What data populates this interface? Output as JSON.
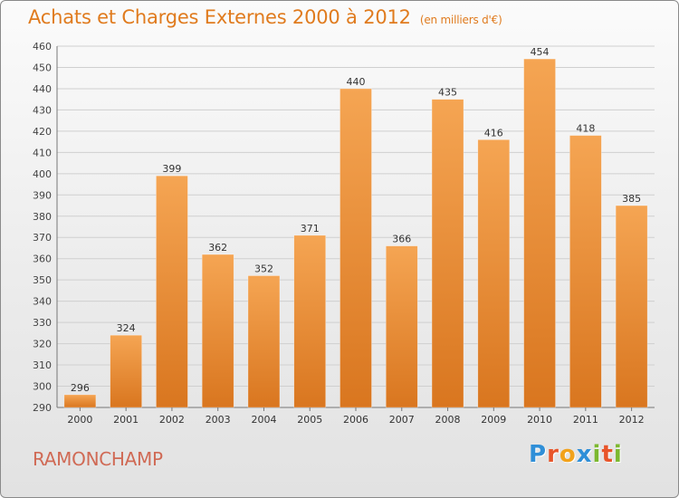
{
  "title": "Achats et Charges Externes 2000 à 2012",
  "subtitle": "(en milliers d'€)",
  "place": "RAMONCHAMP",
  "brand": {
    "letters": [
      {
        "char": "P",
        "color": "#2f8fd8"
      },
      {
        "char": "r",
        "color": "#e8552a"
      },
      {
        "char": "o",
        "color": "#f2a21b"
      },
      {
        "char": "x",
        "color": "#2f8fd8"
      },
      {
        "char": "i",
        "color": "#7cb82f"
      },
      {
        "char": "t",
        "color": "#e8552a"
      },
      {
        "char": "i",
        "color": "#7cb82f"
      }
    ]
  },
  "colors": {
    "bar_top": "#f5a553",
    "bar_bottom": "#d9761f",
    "accent": "#e07b1e",
    "grid": "#cfcfcf"
  },
  "chart_data": {
    "type": "bar",
    "title": "Achats et Charges Externes 2000 à 2012",
    "subtitle": "(en milliers d'€)",
    "categories": [
      "2000",
      "2001",
      "2002",
      "2003",
      "2004",
      "2005",
      "2006",
      "2007",
      "2008",
      "2009",
      "2010",
      "2011",
      "2012"
    ],
    "values": [
      296,
      324,
      399,
      362,
      352,
      371,
      440,
      366,
      435,
      416,
      454,
      418,
      385
    ],
    "ylim": [
      290,
      460
    ],
    "yticks": [
      290,
      300,
      310,
      320,
      330,
      340,
      350,
      360,
      370,
      380,
      390,
      400,
      410,
      420,
      430,
      440,
      450,
      460
    ],
    "grid": true,
    "legend": "none"
  }
}
